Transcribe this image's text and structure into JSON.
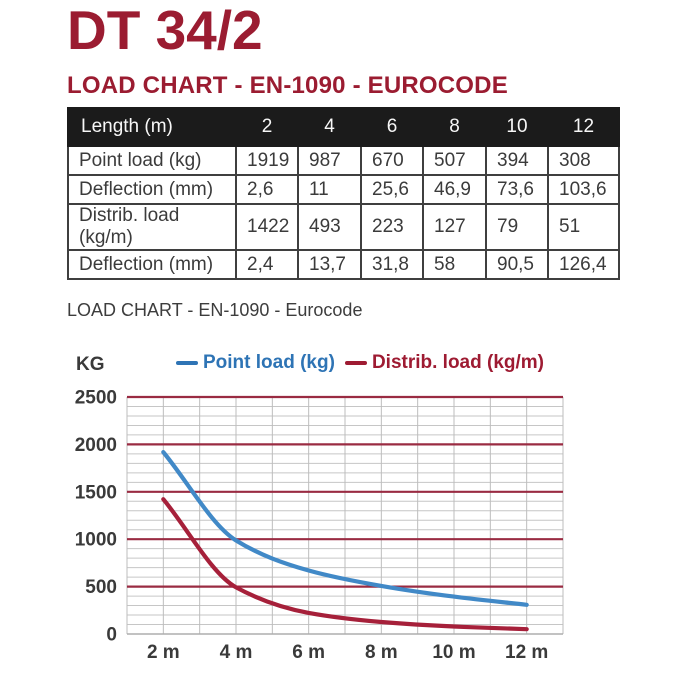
{
  "page": {
    "title": "DT 34/2",
    "heading": "LOAD CHART - EN-1090 - EUROCODE"
  },
  "table": {
    "header_label": "Length (m)",
    "lengths": [
      "2",
      "4",
      "6",
      "8",
      "10",
      "12"
    ],
    "rows": [
      {
        "label": "Point load (kg)",
        "values": [
          "1919",
          "987",
          "670",
          "507",
          "394",
          "308"
        ]
      },
      {
        "label": "Deflection (mm)",
        "values": [
          "2,6",
          "11",
          "25,6",
          "46,9",
          "73,6",
          "103,6"
        ]
      },
      {
        "label": "Distrib. load (kg/m)",
        "values": [
          "1422",
          "493",
          "223",
          "127",
          "79",
          "51"
        ]
      },
      {
        "label": "Deflection (mm)",
        "values": [
          "2,4",
          "13,7",
          "31,8",
          "58",
          "90,5",
          "126,4"
        ]
      }
    ]
  },
  "chart": {
    "subtitle": "LOAD CHART - EN-1090 - Eurocode",
    "y_unit_label": "KG",
    "legend": [
      {
        "label": "Point load (kg)",
        "color": "#2e74b5"
      },
      {
        "label": "Distrib. load (kg/m)",
        "color": "#9e1b32"
      }
    ]
  },
  "chart_data": {
    "type": "line",
    "title": "LOAD CHART - EN-1090 - Eurocode",
    "xlabel": "Length (m)",
    "ylabel": "KG",
    "x": [
      2,
      4,
      6,
      8,
      10,
      12
    ],
    "x_tick_labels": [
      "2 m",
      "4 m",
      "6 m",
      "8 m",
      "10 m",
      "12 m"
    ],
    "series": [
      {
        "name": "Point load (kg)",
        "color": "#4189c7",
        "values": [
          1919,
          987,
          670,
          507,
          394,
          308
        ]
      },
      {
        "name": "Distrib. load (kg/m)",
        "color": "#a6203a",
        "values": [
          1422,
          493,
          223,
          127,
          79,
          51
        ]
      }
    ],
    "xlim": [
      1,
      13
    ],
    "ylim": [
      0,
      2500
    ],
    "x_grid_step": 1,
    "y_major_step": 500,
    "y_minor_step": 100,
    "y_tick_values": [
      0,
      500,
      1000,
      1500,
      2000,
      2500
    ],
    "y_tick_labels": [
      "0",
      "500",
      "1000",
      "1500",
      "2000",
      "2500"
    ],
    "grid": true,
    "legend_position": "top",
    "major_grid_color": "#9a2b42",
    "minor_grid_color": "#c6c6c6",
    "vertical_grid_color": "#bdbdbd",
    "zero_line_color": "#adadad",
    "tick_text_color": "#3a3a3a"
  },
  "colors": {
    "accent_maroon": "#9b1c31",
    "table_header_bg": "#1b1b1b",
    "table_border": "#3f3f3f",
    "text_dark": "#3b3b3b"
  }
}
